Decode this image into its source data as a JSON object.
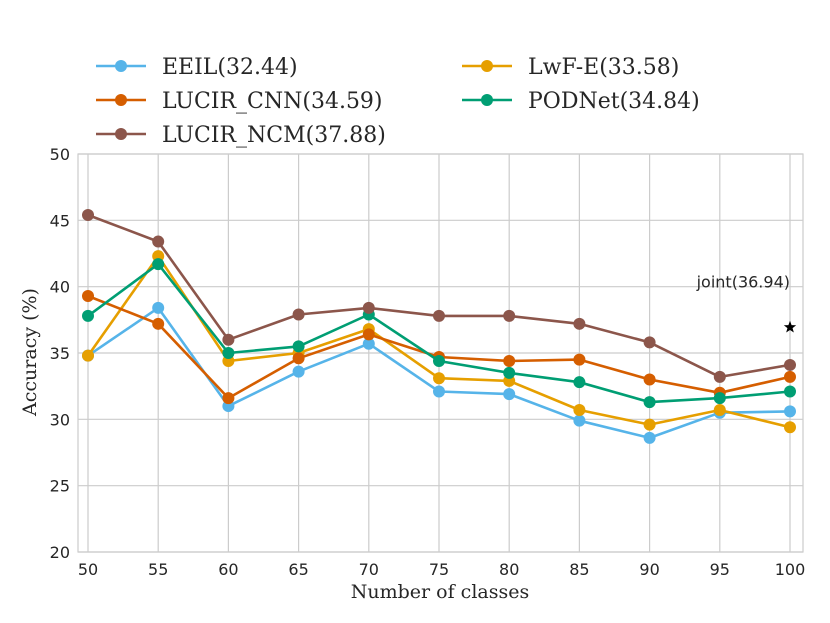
{
  "chart_data": {
    "type": "line",
    "title": "",
    "xlabel": "Number of classes",
    "ylabel": "Accuracy (%)",
    "x": [
      50,
      55,
      60,
      65,
      70,
      75,
      80,
      85,
      90,
      95,
      100
    ],
    "x_ticks": [
      "50",
      "55",
      "60",
      "65",
      "70",
      "75",
      "80",
      "85",
      "90",
      "95",
      "100"
    ],
    "ylim": [
      20,
      50
    ],
    "y_ticks": [
      "20",
      "25",
      "30",
      "35",
      "40",
      "45",
      "50"
    ],
    "grid": true,
    "legend_position": "top",
    "series": [
      {
        "name": "EEIL(32.44)",
        "color": "#56b4e9",
        "values": [
          34.8,
          38.4,
          31.0,
          33.6,
          35.7,
          32.1,
          31.9,
          29.9,
          28.6,
          30.5,
          30.6
        ]
      },
      {
        "name": "LwF-E(33.58)",
        "color": "#e69f00",
        "values": [
          34.8,
          42.3,
          34.4,
          35.0,
          36.8,
          33.1,
          32.9,
          30.7,
          29.6,
          30.7,
          29.4
        ]
      },
      {
        "name": "LUCIR_CNN(34.59)",
        "color": "#d55e00",
        "values": [
          39.3,
          37.2,
          31.6,
          34.6,
          36.4,
          34.7,
          34.4,
          34.5,
          33.0,
          32.0,
          33.2
        ]
      },
      {
        "name": "PODNet(34.84)",
        "color": "#009e73",
        "values": [
          37.8,
          41.7,
          35.0,
          35.5,
          37.9,
          34.4,
          33.5,
          32.8,
          31.3,
          31.6,
          32.1
        ]
      },
      {
        "name": "LUCIR_NCM(37.88)",
        "color": "#8c564b",
        "values": [
          45.4,
          43.4,
          36.0,
          37.9,
          38.4,
          37.8,
          37.8,
          37.2,
          35.8,
          33.2,
          34.1
        ]
      }
    ],
    "annotations": [
      {
        "text": "joint(36.94)",
        "x": 100,
        "y": 36.94,
        "marker": "star",
        "color": "#000000"
      }
    ]
  }
}
